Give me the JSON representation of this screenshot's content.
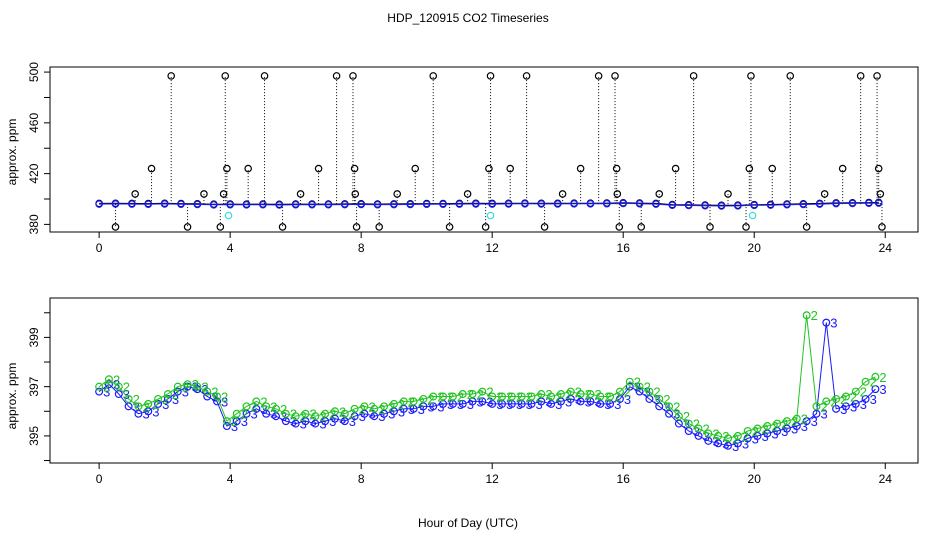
{
  "figure": {
    "title": "HDP_120915  CO2 Timeseries",
    "xlabel": "Hour of Day (UTC)"
  },
  "colors": {
    "black_series": "#000000",
    "blue_series": "#1a1aff",
    "green_series": "#22c422",
    "cyan_series": "#33dddd"
  },
  "chart_data": [
    {
      "type": "scatter",
      "title": "",
      "ylabel": "approx. ppm",
      "xlim": [
        -1.5,
        25
      ],
      "ylim": [
        374,
        504
      ],
      "xticks": [
        0,
        4,
        8,
        12,
        16,
        20,
        24
      ],
      "xtick_labels": [
        "0",
        "4",
        "8",
        "12",
        "16",
        "20",
        "24"
      ],
      "yticks": [
        380,
        420,
        460,
        500
      ],
      "ytick_labels": [
        "380",
        "420",
        "460",
        "500"
      ],
      "series": [
        {
          "name": "black circles (baseline)",
          "color": "#000000",
          "x": [
            0.0,
            0.5,
            1.0,
            1.5,
            2.0,
            2.5,
            3.0,
            3.5,
            4.0,
            4.5,
            5.0,
            5.5,
            6.0,
            6.5,
            7.0,
            7.5,
            8.0,
            8.5,
            9.0,
            9.5,
            10.0,
            10.5,
            11.0,
            11.5,
            12.0,
            12.5,
            13.0,
            13.5,
            14.0,
            14.5,
            15.0,
            15.5,
            16.0,
            16.5,
            17.0,
            17.5,
            18.0,
            18.5,
            19.0,
            19.5,
            20.0,
            20.5,
            21.0,
            21.5,
            22.0,
            22.5,
            23.0,
            23.5,
            23.8
          ],
          "y": [
            396.5,
            396.6,
            396.5,
            396.4,
            396.6,
            396.4,
            396.2,
            395.9,
            396.0,
            395.9,
            396.0,
            395.8,
            396.0,
            396.0,
            396.0,
            396.1,
            396.2,
            396.0,
            396.1,
            396.2,
            396.4,
            396.4,
            396.5,
            396.6,
            396.5,
            396.6,
            396.7,
            396.6,
            396.6,
            396.7,
            396.7,
            396.8,
            397.0,
            396.8,
            396.5,
            395.6,
            395.4,
            395.2,
            395.0,
            395.1,
            395.5,
            395.7,
            396.0,
            396.2,
            396.5,
            396.9,
            397.0,
            397.2,
            397.3
          ]
        },
        {
          "name": "black circles (outliers)",
          "color": "#000000",
          "x": [
            0.5,
            1.1,
            1.6,
            2.2,
            2.7,
            3.2,
            3.7,
            3.8,
            3.9,
            3.85,
            4.55,
            5.05,
            5.6,
            6.15,
            6.7,
            7.25,
            7.75,
            7.8,
            7.82,
            7.86,
            8.55,
            9.1,
            9.65,
            10.2,
            10.7,
            11.25,
            11.8,
            11.9,
            11.95,
            12.55,
            13.05,
            13.6,
            14.15,
            14.7,
            15.25,
            15.75,
            15.8,
            15.82,
            15.88,
            16.55,
            17.1,
            17.6,
            18.15,
            18.65,
            19.2,
            19.75,
            19.85,
            19.9,
            20.55,
            21.1,
            21.6,
            22.15,
            22.7,
            23.25,
            23.75,
            23.8,
            23.85,
            23.9
          ],
          "y": [
            378,
            404,
            424,
            497,
            378,
            404,
            378,
            404,
            424,
            497,
            424,
            497,
            378,
            404,
            424,
            497,
            497,
            424,
            404,
            378,
            378,
            404,
            424,
            497,
            378,
            404,
            378,
            424,
            497,
            424,
            497,
            378,
            404,
            424,
            497,
            497,
            424,
            404,
            378,
            378,
            404,
            424,
            497,
            378,
            404,
            378,
            424,
            497,
            424,
            497,
            378,
            404,
            424,
            497,
            497,
            424,
            404,
            378
          ]
        },
        {
          "name": "blue circles",
          "color": "#1a1aff",
          "x": [
            0.0,
            0.5,
            1.0,
            1.5,
            2.0,
            2.5,
            3.0,
            3.5,
            4.0,
            4.5,
            5.0,
            5.5,
            6.0,
            6.5,
            7.0,
            7.5,
            8.0,
            8.5,
            9.0,
            9.5,
            10.0,
            10.5,
            11.0,
            11.5,
            12.0,
            12.5,
            13.0,
            13.5,
            14.0,
            14.5,
            15.0,
            15.5,
            16.0,
            16.5,
            17.0,
            17.5,
            18.0,
            18.5,
            19.0,
            19.5,
            20.0,
            20.5,
            21.0,
            21.5,
            22.0,
            22.5,
            23.0,
            23.5,
            23.8
          ],
          "y": [
            396.0,
            396.1,
            396.0,
            395.9,
            396.1,
            395.9,
            395.7,
            395.4,
            395.5,
            395.4,
            395.5,
            395.3,
            395.5,
            395.5,
            395.5,
            395.6,
            395.7,
            395.5,
            395.6,
            395.7,
            395.9,
            395.9,
            396.0,
            396.1,
            396.0,
            396.1,
            396.2,
            396.1,
            396.1,
            396.2,
            396.2,
            396.3,
            396.5,
            396.3,
            396.0,
            395.1,
            394.9,
            394.7,
            394.5,
            394.6,
            395.0,
            395.2,
            395.5,
            395.7,
            396.0,
            396.4,
            396.5,
            396.7,
            396.8
          ]
        },
        {
          "name": "cyan circles",
          "color": "#33dddd",
          "x": [
            3.95,
            11.95,
            19.95
          ],
          "y": [
            387,
            387,
            387
          ]
        }
      ]
    },
    {
      "type": "scatter",
      "title": "",
      "ylabel": "approx. ppm",
      "xlim": [
        -1.5,
        25
      ],
      "ylim": [
        393.9,
        400.6
      ],
      "xticks": [
        0,
        4,
        8,
        12,
        16,
        20,
        24
      ],
      "xtick_labels": [
        "0",
        "4",
        "8",
        "12",
        "16",
        "20",
        "24"
      ],
      "yticks": [
        395,
        397,
        399
      ],
      "ytick_labels": [
        "395",
        "397",
        "399"
      ],
      "series": [
        {
          "name": "blue circles / 3",
          "color": "#1a1aff",
          "marker_label": "3",
          "x": [
            0.0,
            0.3,
            0.6,
            0.9,
            1.2,
            1.5,
            1.8,
            2.1,
            2.4,
            2.7,
            3.0,
            3.3,
            3.6,
            3.9,
            4.2,
            4.5,
            4.8,
            5.1,
            5.4,
            5.7,
            6.0,
            6.3,
            6.6,
            6.9,
            7.2,
            7.5,
            7.8,
            8.1,
            8.4,
            8.7,
            9.0,
            9.3,
            9.6,
            9.9,
            10.2,
            10.5,
            10.8,
            11.1,
            11.4,
            11.7,
            12.0,
            12.3,
            12.6,
            12.9,
            13.2,
            13.5,
            13.8,
            14.1,
            14.4,
            14.7,
            15.0,
            15.3,
            15.6,
            15.9,
            16.2,
            16.5,
            16.8,
            17.1,
            17.4,
            17.7,
            18.0,
            18.3,
            18.6,
            18.9,
            19.2,
            19.5,
            19.8,
            20.1,
            20.4,
            20.7,
            21.0,
            21.3,
            21.6,
            21.9,
            22.2,
            22.5,
            22.8,
            23.1,
            23.4,
            23.7
          ],
          "y": [
            396.8,
            397.1,
            396.7,
            396.2,
            395.9,
            396.0,
            396.3,
            396.5,
            396.8,
            397.0,
            396.9,
            396.6,
            396.4,
            395.4,
            395.6,
            395.9,
            396.1,
            395.9,
            395.8,
            395.6,
            395.5,
            395.6,
            395.5,
            395.6,
            395.7,
            395.6,
            395.8,
            395.9,
            395.8,
            395.9,
            396.0,
            396.1,
            396.1,
            396.2,
            396.2,
            396.3,
            396.3,
            396.3,
            396.4,
            396.4,
            396.3,
            396.3,
            396.3,
            396.3,
            396.3,
            396.4,
            396.3,
            396.4,
            396.5,
            396.4,
            396.4,
            396.3,
            396.3,
            396.5,
            397.0,
            396.8,
            396.5,
            396.2,
            395.9,
            395.5,
            395.2,
            395.0,
            394.8,
            394.7,
            394.6,
            394.7,
            394.9,
            395.0,
            395.1,
            395.2,
            395.3,
            395.4,
            395.6,
            395.9,
            399.6,
            396.1,
            396.2,
            396.3,
            396.5,
            396.9
          ]
        },
        {
          "name": "green circles / 2",
          "color": "#22c422",
          "marker_label": "2",
          "x": [
            0.0,
            0.3,
            0.6,
            0.9,
            1.2,
            1.5,
            1.8,
            2.1,
            2.4,
            2.7,
            3.0,
            3.3,
            3.6,
            3.9,
            4.2,
            4.5,
            4.8,
            5.1,
            5.4,
            5.7,
            6.0,
            6.3,
            6.6,
            6.9,
            7.2,
            7.5,
            7.8,
            8.1,
            8.4,
            8.7,
            9.0,
            9.3,
            9.6,
            9.9,
            10.2,
            10.5,
            10.8,
            11.1,
            11.4,
            11.7,
            12.0,
            12.3,
            12.6,
            12.9,
            13.2,
            13.5,
            13.8,
            14.1,
            14.4,
            14.7,
            15.0,
            15.3,
            15.6,
            15.9,
            16.2,
            16.5,
            16.8,
            17.1,
            17.4,
            17.7,
            18.0,
            18.3,
            18.6,
            18.9,
            19.2,
            19.5,
            19.8,
            20.1,
            20.4,
            20.7,
            21.0,
            21.3,
            21.6,
            21.9,
            22.2,
            22.5,
            22.8,
            23.1,
            23.4,
            23.7
          ],
          "y": [
            397.0,
            397.3,
            397.0,
            396.5,
            396.2,
            396.3,
            396.5,
            396.7,
            397.0,
            397.1,
            397.0,
            396.8,
            396.6,
            395.6,
            395.9,
            396.2,
            396.4,
            396.2,
            396.1,
            395.9,
            395.8,
            395.9,
            395.8,
            395.9,
            396.0,
            395.9,
            396.1,
            396.2,
            396.1,
            396.2,
            396.3,
            396.4,
            396.4,
            396.5,
            396.6,
            396.6,
            396.6,
            396.7,
            396.7,
            396.8,
            396.6,
            396.6,
            396.6,
            396.6,
            396.6,
            396.7,
            396.6,
            396.7,
            396.8,
            396.7,
            396.7,
            396.6,
            396.6,
            396.8,
            397.2,
            397.0,
            396.8,
            396.5,
            396.2,
            395.8,
            395.5,
            395.3,
            395.1,
            395.0,
            394.9,
            395.0,
            395.2,
            395.3,
            395.4,
            395.5,
            395.6,
            395.7,
            399.9,
            396.2,
            396.4,
            396.5,
            396.6,
            396.8,
            397.2,
            397.4
          ]
        }
      ]
    }
  ]
}
